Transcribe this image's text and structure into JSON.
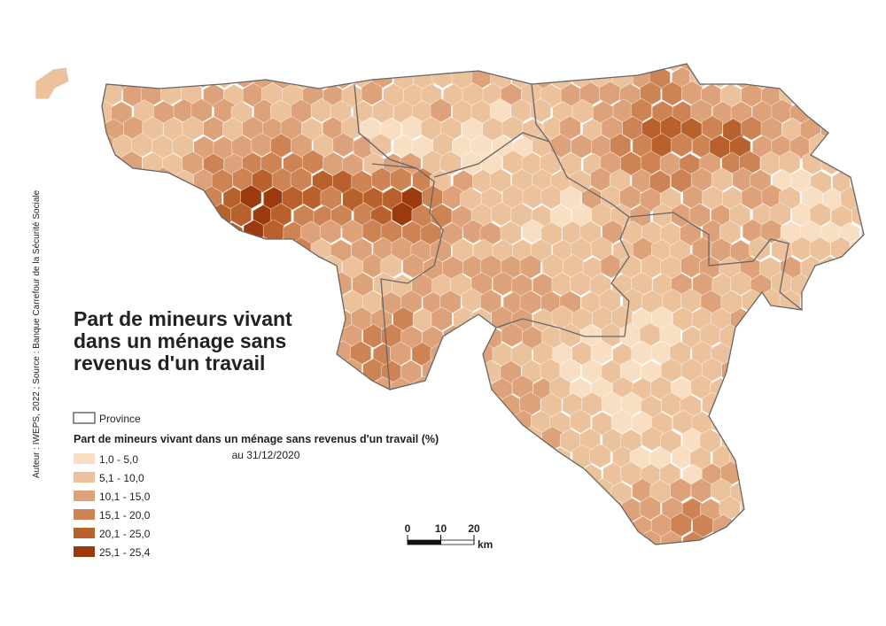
{
  "title": [
    "Part de mineurs vivant",
    "dans un ménage sans",
    "revenus d'un travail"
  ],
  "source": "Auteur : IWEPS, 2022 ; Source : Banque Carrefour de la Sécurité Sociale",
  "legend": {
    "province": "Province",
    "title": "Part de mineurs vivant dans un ménage sans revenus d'un travail (%)",
    "subtitle": "au 31/12/2020",
    "classes": [
      {
        "label": "1,0 - 5,0",
        "color": "#f8dfc4"
      },
      {
        "label": "5,1 - 10,0",
        "color": "#ebc29c"
      },
      {
        "label": "10,1 - 15,0",
        "color": "#dda279"
      },
      {
        "label": "15,1 - 20,0",
        "color": "#cd8353"
      },
      {
        "label": "20,1 - 25,0",
        "color": "#b8612c"
      },
      {
        "label": "25,1 - 25,4",
        "color": "#9a3a0e"
      }
    ]
  },
  "scale": {
    "ticks": [
      0,
      10,
      20
    ],
    "unit": "km"
  }
}
